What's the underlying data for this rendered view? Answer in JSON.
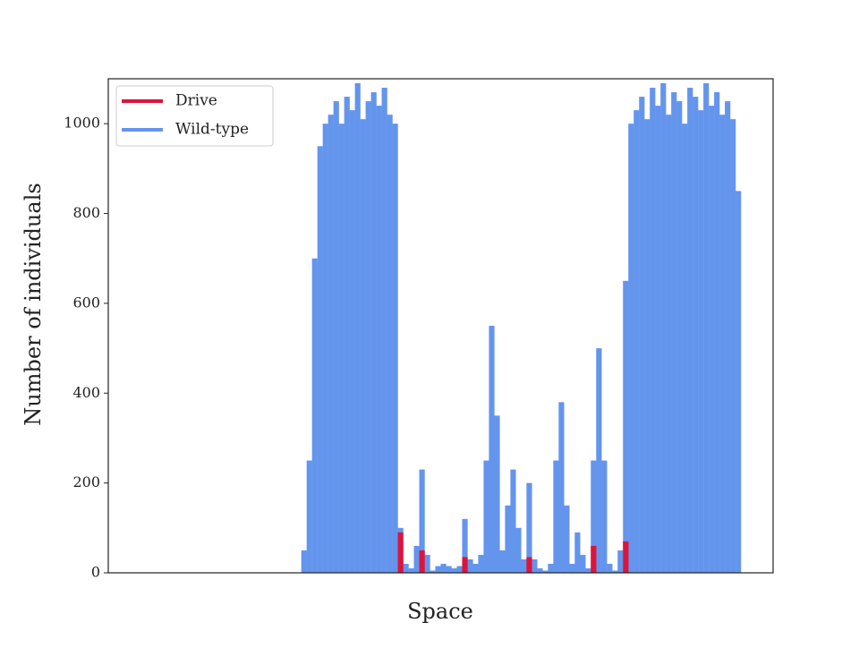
{
  "chart_data": {
    "type": "bar",
    "xlabel": "Space",
    "ylabel": "Number of individuals",
    "categories": [
      null,
      null,
      null,
      null,
      null,
      null,
      null,
      null,
      null,
      null,
      null,
      null,
      null,
      null,
      null,
      null,
      null,
      null,
      null,
      null,
      null,
      null,
      null,
      null,
      null,
      null,
      null,
      null,
      null,
      null,
      null,
      null,
      null,
      null,
      null,
      null,
      null,
      null,
      null,
      null,
      null,
      null,
      null,
      null,
      null,
      null,
      null,
      null,
      null,
      null,
      null,
      null,
      null,
      null,
      null,
      null,
      null,
      null,
      null,
      null,
      null,
      null,
      null,
      null,
      null,
      null,
      null,
      null,
      null,
      null,
      null,
      null,
      null,
      null,
      null,
      null,
      null,
      null,
      null,
      null,
      null,
      null,
      null,
      null,
      null,
      null,
      null,
      null,
      null,
      null,
      null,
      null,
      null,
      null,
      null,
      null,
      null,
      null,
      null,
      null,
      null,
      null,
      null,
      null,
      null,
      null,
      null,
      null,
      null,
      null,
      null,
      null,
      null,
      null,
      null,
      null,
      null,
      null,
      null,
      null,
      null,
      null,
      null,
      null
    ],
    "series": [
      {
        "name": "Wild-type",
        "color": "#6495ed",
        "values": [
          0,
          0,
          0,
          0,
          0,
          0,
          0,
          0,
          0,
          0,
          0,
          0,
          0,
          0,
          0,
          0,
          0,
          0,
          0,
          0,
          0,
          0,
          0,
          0,
          0,
          0,
          0,
          0,
          0,
          0,
          0,
          0,
          0,
          0,
          0,
          0,
          50,
          250,
          700,
          950,
          1000,
          1020,
          1050,
          1000,
          1060,
          1030,
          1090,
          1010,
          1050,
          1070,
          1040,
          1080,
          1020,
          1000,
          100,
          20,
          10,
          60,
          230,
          40,
          5,
          15,
          20,
          15,
          10,
          15,
          120,
          30,
          20,
          40,
          250,
          550,
          350,
          50,
          150,
          230,
          100,
          30,
          200,
          30,
          10,
          5,
          20,
          250,
          380,
          150,
          20,
          90,
          40,
          10,
          250,
          500,
          250,
          20,
          5,
          50,
          650,
          1000,
          1030,
          1060,
          1010,
          1080,
          1040,
          1090,
          1020,
          1070,
          1050,
          1000,
          1080,
          1060,
          1030,
          1090,
          1040,
          1070,
          1020,
          1050,
          1010,
          850,
          0,
          0,
          0,
          0,
          0,
          0
        ]
      },
      {
        "name": "Drive",
        "color": "#dc143c",
        "values": [
          0,
          0,
          0,
          0,
          0,
          0,
          0,
          0,
          0,
          0,
          0,
          0,
          0,
          0,
          0,
          0,
          0,
          0,
          0,
          0,
          0,
          0,
          0,
          0,
          0,
          0,
          0,
          0,
          0,
          0,
          0,
          0,
          0,
          0,
          0,
          0,
          0,
          0,
          0,
          0,
          0,
          0,
          0,
          0,
          0,
          0,
          0,
          0,
          0,
          0,
          0,
          0,
          0,
          0,
          90,
          0,
          0,
          0,
          50,
          0,
          0,
          0,
          0,
          0,
          0,
          0,
          35,
          0,
          0,
          0,
          0,
          0,
          0,
          0,
          0,
          0,
          0,
          0,
          35,
          0,
          0,
          0,
          0,
          0,
          0,
          0,
          0,
          0,
          0,
          0,
          60,
          0,
          0,
          0,
          0,
          0,
          70,
          0,
          0,
          0,
          0,
          0,
          0,
          0,
          0,
          0,
          0,
          0,
          0,
          0,
          0,
          0,
          0,
          0,
          0,
          0,
          0,
          0,
          0,
          0,
          0,
          0,
          0,
          0
        ]
      }
    ],
    "ylim": [
      0,
      1100
    ],
    "yticks": [
      0,
      200,
      400,
      600,
      800,
      1000
    ],
    "legend": "upper left"
  }
}
